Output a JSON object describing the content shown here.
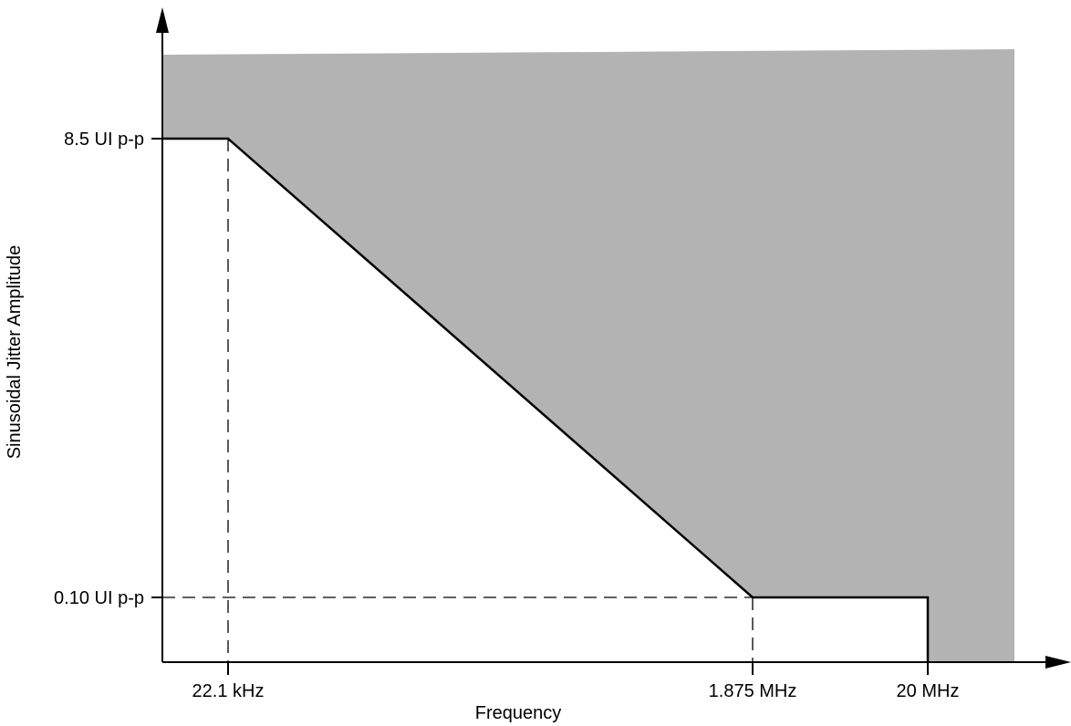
{
  "chart_data": {
    "type": "line",
    "title": "",
    "xlabel": "Frequency",
    "ylabel": "Sinusoidal Jitter Amplitude",
    "x_scale": "log",
    "y_scale": "log",
    "x_ticks": [
      {
        "value": 22100,
        "label": "22.1 kHz"
      },
      {
        "value": 1875000,
        "label": "1.875 MHz"
      },
      {
        "value": 20000000,
        "label": "20 MHz"
      }
    ],
    "y_ticks": [
      {
        "value": 8.5,
        "label": "8.5 UI p-p"
      },
      {
        "value": 0.1,
        "label": "0.10 UI p-p"
      }
    ],
    "series": [
      {
        "points": [
          {
            "x": 22100,
            "y": 8.5
          },
          {
            "x": 1875000,
            "y": 0.1
          },
          {
            "x": 20000000,
            "y": 0.1
          }
        ]
      }
    ],
    "shaded_region": "jitter tolerance region above mask",
    "grid": false,
    "colors": {
      "shade": "#b3b3b3",
      "line": "#000000",
      "background": "#ffffff"
    }
  }
}
